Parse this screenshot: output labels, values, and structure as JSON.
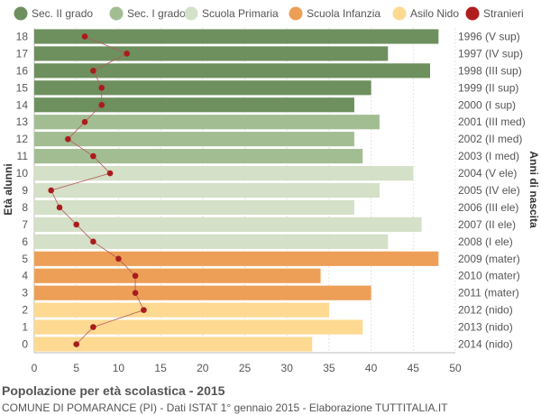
{
  "footer": {
    "title": "Popolazione per età scolastica - 2015",
    "subtitle": "COMUNE DI POMARANCE (PI) - Dati ISTAT 1° gennaio 2015 - Elaborazione TUTTITALIA.IT"
  },
  "chart_data": {
    "type": "bar",
    "orientation": "horizontal",
    "ylabel": "Età alunni",
    "ylabel_right": "Anni di nascita",
    "xlim": [
      0,
      50
    ],
    "xticks": [
      0,
      5,
      10,
      15,
      20,
      25,
      30,
      35,
      40,
      45,
      50
    ],
    "grid": true,
    "legend_position": "top",
    "legend": [
      {
        "name": "Sec. II grado",
        "color": "#6e8f5e"
      },
      {
        "name": "Sec. I grado",
        "color": "#a3bd93"
      },
      {
        "name": "Scuola Primaria",
        "color": "#d4e0c7"
      },
      {
        "name": "Scuola Infanzia",
        "color": "#ed9f57"
      },
      {
        "name": "Asilo Nido",
        "color": "#fdd992"
      },
      {
        "name": "Stranieri",
        "color": "#b01d1d"
      }
    ],
    "ages": [
      18,
      17,
      16,
      15,
      14,
      13,
      12,
      11,
      10,
      9,
      8,
      7,
      6,
      5,
      4,
      3,
      2,
      1,
      0
    ],
    "birth_years": [
      "1996 (V sup)",
      "1997 (IV sup)",
      "1998 (III sup)",
      "1999 (II sup)",
      "2000 (I sup)",
      "2001 (III med)",
      "2002 (II med)",
      "2003 (I med)",
      "2004 (V ele)",
      "2005 (IV ele)",
      "2006 (III ele)",
      "2007 (II ele)",
      "2008 (I ele)",
      "2009 (mater)",
      "2010 (mater)",
      "2011 (mater)",
      "2012 (nido)",
      "2013 (nido)",
      "2014 (nido)"
    ],
    "values": [
      48,
      42,
      47,
      40,
      38,
      41,
      38,
      39,
      45,
      41,
      38,
      46,
      42,
      48,
      34,
      40,
      35,
      39,
      33
    ],
    "groups": [
      "Sec. II grado",
      "Sec. II grado",
      "Sec. II grado",
      "Sec. II grado",
      "Sec. II grado",
      "Sec. I grado",
      "Sec. I grado",
      "Sec. I grado",
      "Scuola Primaria",
      "Scuola Primaria",
      "Scuola Primaria",
      "Scuola Primaria",
      "Scuola Primaria",
      "Scuola Infanzia",
      "Scuola Infanzia",
      "Scuola Infanzia",
      "Asilo Nido",
      "Asilo Nido",
      "Asilo Nido"
    ],
    "stranieri": [
      6,
      11,
      7,
      8,
      8,
      6,
      4,
      7,
      9,
      2,
      3,
      5,
      7,
      10,
      12,
      12,
      13,
      7,
      5
    ]
  }
}
